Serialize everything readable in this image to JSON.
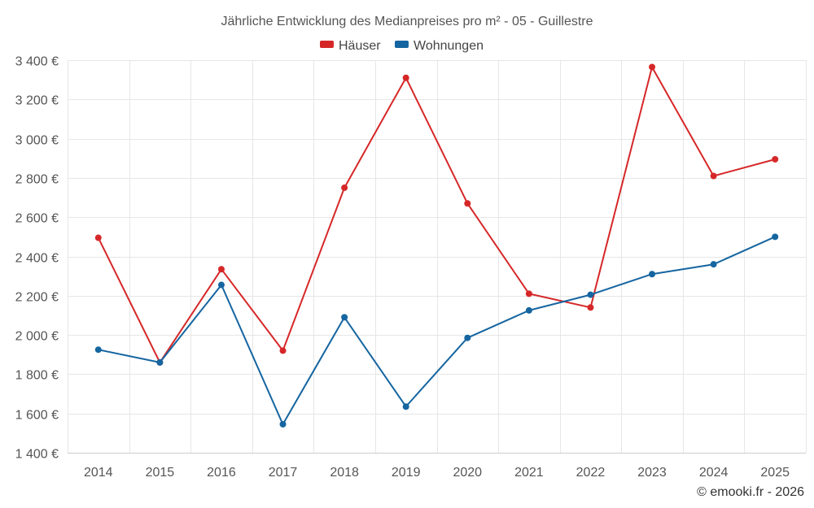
{
  "chart_data": {
    "type": "line",
    "title": "Jährliche Entwicklung des Medianpreises pro m² - 05 - Guillestre",
    "categories": [
      "2014",
      "2015",
      "2016",
      "2017",
      "2018",
      "2019",
      "2020",
      "2021",
      "2022",
      "2023",
      "2024",
      "2025"
    ],
    "series": [
      {
        "name": "Häuser",
        "color": "#d62728",
        "values": [
          2495,
          1860,
          2335,
          1920,
          2750,
          3310,
          2670,
          2210,
          2140,
          3365,
          2810,
          2895
        ]
      },
      {
        "name": "Wohnungen",
        "color": "#1565a0",
        "values": [
          1925,
          1860,
          2255,
          1545,
          2090,
          1635,
          1985,
          2125,
          2205,
          2310,
          2360,
          2500
        ]
      }
    ],
    "ylim": [
      1400,
      3400
    ],
    "yticks": [
      1400,
      1600,
      1800,
      2000,
      2200,
      2400,
      2600,
      2800,
      3000,
      3200,
      3400
    ],
    "ytick_labels": [
      "1 400 €",
      "1 600 €",
      "1 800 €",
      "2 000 €",
      "2 200 €",
      "2 400 €",
      "2 600 €",
      "2 800 €",
      "3 000 €",
      "3 200 €",
      "3 400 €"
    ],
    "grid": true,
    "legend_position": "top-center",
    "credit": "© emooki.fr - 2026"
  }
}
